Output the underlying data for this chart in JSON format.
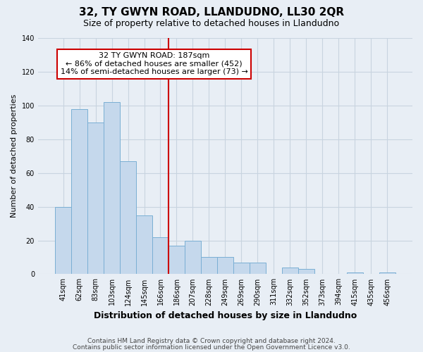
{
  "title": "32, TY GWYN ROAD, LLANDUDNO, LL30 2QR",
  "subtitle": "Size of property relative to detached houses in Llandudno",
  "xlabel": "Distribution of detached houses by size in Llandudno",
  "ylabel": "Number of detached properties",
  "bar_labels": [
    "41sqm",
    "62sqm",
    "83sqm",
    "103sqm",
    "124sqm",
    "145sqm",
    "166sqm",
    "186sqm",
    "207sqm",
    "228sqm",
    "249sqm",
    "269sqm",
    "290sqm",
    "311sqm",
    "332sqm",
    "352sqm",
    "373sqm",
    "394sqm",
    "415sqm",
    "435sqm",
    "456sqm"
  ],
  "bar_values": [
    40,
    98,
    90,
    102,
    67,
    35,
    22,
    17,
    20,
    10,
    10,
    7,
    7,
    0,
    4,
    3,
    0,
    0,
    1,
    0,
    1
  ],
  "bar_color": "#c5d8ec",
  "bar_edge_color": "#7aafd4",
  "reference_line_index": 7,
  "annotation_title": "32 TY GWYN ROAD: 187sqm",
  "annotation_line1": "← 86% of detached houses are smaller (452)",
  "annotation_line2": "14% of semi-detached houses are larger (73) →",
  "annotation_box_facecolor": "#ffffff",
  "annotation_box_edgecolor": "#cc0000",
  "vline_color": "#cc0000",
  "ylim": [
    0,
    140
  ],
  "yticks": [
    0,
    20,
    40,
    60,
    80,
    100,
    120,
    140
  ],
  "footnote1": "Contains HM Land Registry data © Crown copyright and database right 2024.",
  "footnote2": "Contains public sector information licensed under the Open Government Licence v3.0.",
  "bg_color": "#e8eef5",
  "grid_color": "#c8d4e0",
  "title_fontsize": 11,
  "subtitle_fontsize": 9,
  "ylabel_fontsize": 8,
  "xlabel_fontsize": 9,
  "tick_fontsize": 7,
  "footnote_fontsize": 6.5
}
